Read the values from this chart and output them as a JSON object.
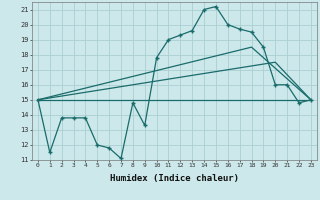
{
  "xlabel": "Humidex (Indice chaleur)",
  "background_color": "#cce8ea",
  "grid_color": "#aacfd2",
  "line_color": "#1a6b6b",
  "xlim": [
    -0.5,
    23.5
  ],
  "ylim": [
    11,
    21.5
  ],
  "yticks": [
    11,
    12,
    13,
    14,
    15,
    16,
    17,
    18,
    19,
    20,
    21
  ],
  "xticks": [
    0,
    1,
    2,
    3,
    4,
    5,
    6,
    7,
    8,
    9,
    10,
    11,
    12,
    13,
    14,
    15,
    16,
    17,
    18,
    19,
    20,
    21,
    22,
    23
  ],
  "line1_x": [
    0,
    1,
    2,
    3,
    4,
    5,
    6,
    7,
    8,
    9,
    10,
    11,
    12,
    13,
    14,
    15,
    16,
    17,
    18,
    19,
    20,
    21,
    22,
    23
  ],
  "line1_y": [
    15.0,
    11.5,
    13.8,
    13.8,
    13.8,
    12.0,
    11.8,
    11.1,
    14.8,
    13.3,
    17.8,
    19.0,
    19.3,
    19.6,
    21.0,
    21.2,
    20.0,
    19.7,
    19.5,
    18.5,
    16.0,
    16.0,
    14.8,
    15.0
  ],
  "line2_x": [
    0,
    23
  ],
  "line2_y": [
    15.0,
    15.0
  ],
  "line3_x": [
    0,
    20,
    23
  ],
  "line3_y": [
    15.0,
    17.5,
    15.0
  ],
  "line4_x": [
    0,
    18,
    23
  ],
  "line4_y": [
    15.0,
    18.5,
    15.0
  ],
  "markersize": 3,
  "linewidth": 0.9
}
